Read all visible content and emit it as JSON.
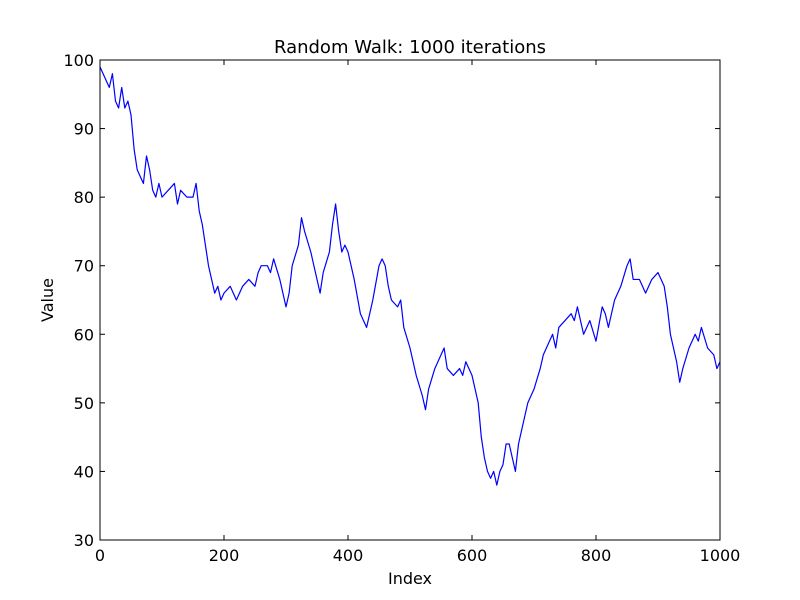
{
  "chart_data": {
    "type": "line",
    "title": "Random Walk: 1000 iterations",
    "xlabel": "Index",
    "ylabel": "Value",
    "xlim": [
      0,
      1000
    ],
    "ylim": [
      30,
      100
    ],
    "xticks": [
      0,
      200,
      400,
      600,
      800,
      1000
    ],
    "yticks": [
      30,
      40,
      50,
      60,
      70,
      80,
      90,
      100
    ],
    "grid": false,
    "legend": "none",
    "colors": {
      "line": "#0000ff",
      "axes": "#000000",
      "background": "#ffffff"
    },
    "series": [
      {
        "x": [
          0,
          5,
          10,
          15,
          20,
          25,
          30,
          35,
          40,
          45,
          50,
          55,
          60,
          65,
          70,
          75,
          80,
          85,
          90,
          95,
          100,
          110,
          120,
          125,
          130,
          140,
          150,
          155,
          160,
          165,
          170,
          175,
          180,
          185,
          190,
          195,
          200,
          210,
          220,
          230,
          240,
          250,
          255,
          260,
          270,
          275,
          280,
          290,
          300,
          305,
          310,
          320,
          325,
          330,
          340,
          345,
          350,
          355,
          360,
          370,
          375,
          380,
          385,
          390,
          395,
          400,
          410,
          420,
          425,
          430,
          435,
          440,
          450,
          455,
          460,
          465,
          470,
          480,
          485,
          490,
          500,
          510,
          520,
          525,
          530,
          540,
          550,
          555,
          560,
          570,
          580,
          585,
          590,
          600,
          610,
          615,
          620,
          625,
          630,
          635,
          640,
          645,
          650,
          655,
          660,
          665,
          670,
          675,
          680,
          690,
          700,
          710,
          715,
          720,
          730,
          735,
          740,
          750,
          760,
          765,
          770,
          780,
          790,
          800,
          810,
          815,
          820,
          830,
          840,
          850,
          855,
          860,
          870,
          880,
          890,
          900,
          910,
          915,
          920,
          925,
          930,
          935,
          940,
          950,
          960,
          965,
          970,
          980,
          990,
          995,
          1000
        ],
        "y": [
          99,
          98,
          97,
          96,
          98,
          94,
          93,
          96,
          93,
          94,
          92,
          87,
          84,
          83,
          82,
          86,
          84,
          81,
          80,
          82,
          80,
          81,
          82,
          79,
          81,
          80,
          80,
          82,
          78,
          76,
          73,
          70,
          68,
          66,
          67,
          65,
          66,
          67,
          65,
          67,
          68,
          67,
          69,
          70,
          70,
          69,
          71,
          68,
          64,
          66,
          70,
          73,
          77,
          75,
          72,
          70,
          68,
          66,
          69,
          72,
          76,
          79,
          75,
          72,
          73,
          72,
          68,
          63,
          62,
          61,
          63,
          65,
          70,
          71,
          70,
          67,
          65,
          64,
          65,
          61,
          58,
          54,
          51,
          49,
          52,
          55,
          57,
          58,
          55,
          54,
          55,
          54,
          56,
          54,
          50,
          45,
          42,
          40,
          39,
          40,
          38,
          40,
          41,
          44,
          44,
          42,
          40,
          44,
          46,
          50,
          52,
          55,
          57,
          58,
          60,
          58,
          61,
          62,
          63,
          62,
          64,
          60,
          62,
          59,
          64,
          63,
          61,
          65,
          67,
          70,
          71,
          68,
          68,
          66,
          68,
          69,
          67,
          64,
          60,
          58,
          56,
          53,
          55,
          58,
          60,
          59,
          61,
          58,
          57,
          55,
          56
        ]
      }
    ]
  }
}
